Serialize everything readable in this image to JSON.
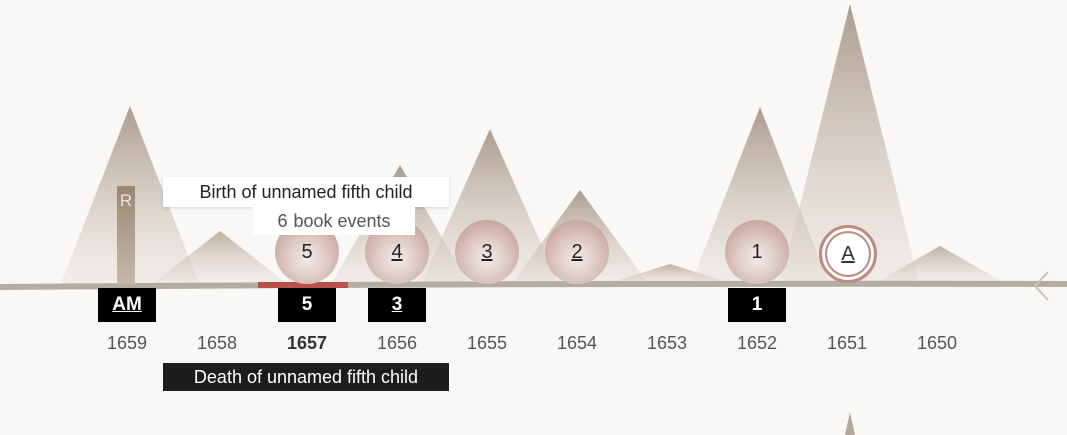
{
  "tooltip": {
    "event_title": "Birth of unnamed fifth child",
    "count": "6",
    "count_label": "book events"
  },
  "death_label": "Death of unnamed fifth child",
  "r_marker": "R",
  "years": [
    "1659",
    "1658",
    "1657",
    "1656",
    "1655",
    "1654",
    "1653",
    "1652",
    "1651",
    "1650"
  ],
  "active_year": "1657",
  "black_boxes": [
    "AM",
    "5",
    "3",
    "1"
  ],
  "bubbles": [
    "5",
    "4",
    "3",
    "2",
    "1"
  ],
  "special_bubble": "A",
  "colors": {
    "background": "#f9f8f6",
    "mountain": "#b6a798",
    "bubble": "#c79f95",
    "highlight": "#b9514a",
    "ring": "#c08a7e"
  },
  "icons": [
    "chevron-left-icon"
  ]
}
